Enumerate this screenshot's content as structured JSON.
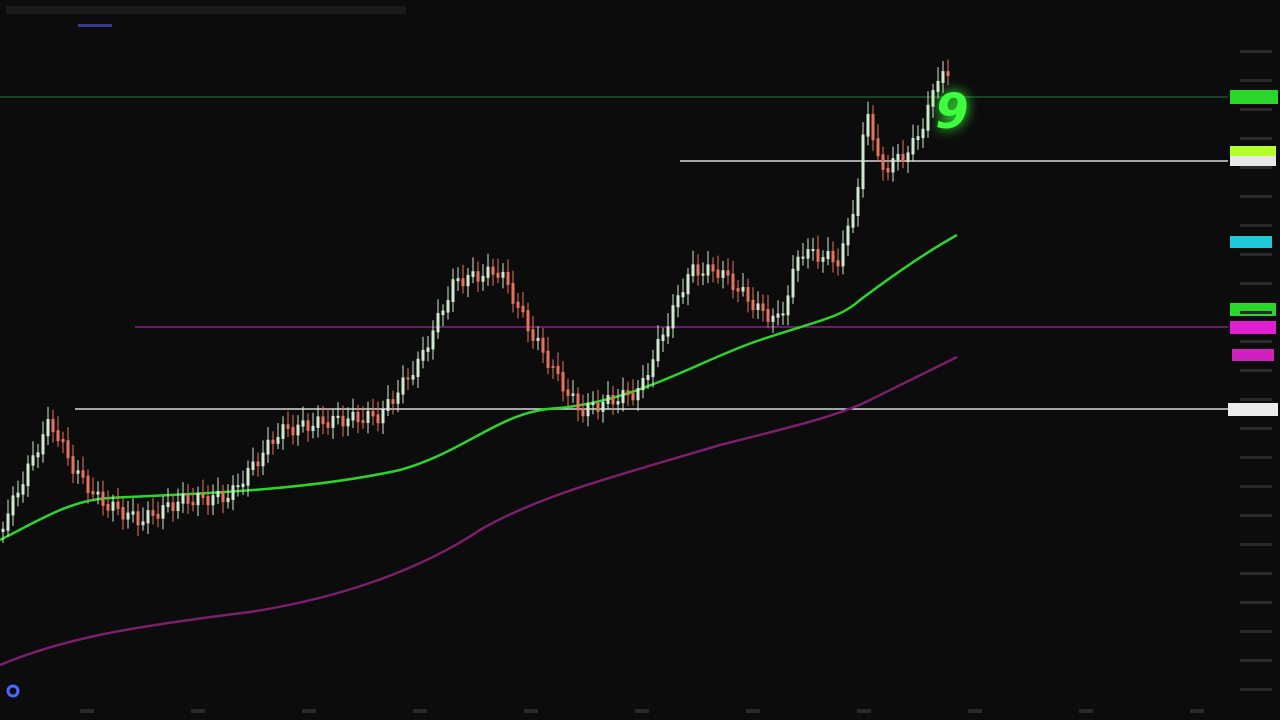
{
  "overlay": {
    "signal_label": "9"
  }
}
